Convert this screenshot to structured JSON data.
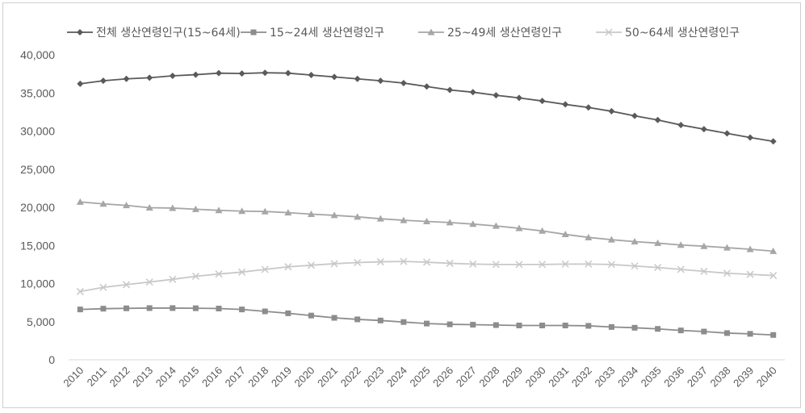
{
  "chart_data": {
    "type": "line",
    "title": "",
    "xlabel": "",
    "ylabel": "",
    "ylim": [
      0,
      40000
    ],
    "yticks": [
      "0",
      "5,000",
      "10,000",
      "15,000",
      "20,000",
      "25,000",
      "30,000",
      "35,000",
      "40,000"
    ],
    "grid": false,
    "legend_position": "top",
    "categories": [
      "2010",
      "2011",
      "2012",
      "2013",
      "2014",
      "2015",
      "2016",
      "2017",
      "2018",
      "2019",
      "2020",
      "2021",
      "2022",
      "2023",
      "2024",
      "2025",
      "2026",
      "2027",
      "2028",
      "2029",
      "2030",
      "2031",
      "2032",
      "2033",
      "2034",
      "2035",
      "2036",
      "2037",
      "2038",
      "2039",
      "2040"
    ],
    "series": [
      {
        "name": "전체 생산연령인구(15~64세)",
        "color": "#5a5a5a",
        "marker": "diamond",
        "values": [
          36200,
          36600,
          36850,
          37000,
          37250,
          37400,
          37600,
          37550,
          37650,
          37600,
          37350,
          37100,
          36850,
          36600,
          36300,
          35850,
          35400,
          35100,
          34700,
          34350,
          33950,
          33500,
          33100,
          32600,
          32000,
          31450,
          30800,
          30250,
          29700,
          29150,
          28650
        ]
      },
      {
        "name": "15~24세 생산연령인구",
        "color": "#8c8c8c",
        "marker": "square",
        "values": [
          6600,
          6700,
          6750,
          6780,
          6780,
          6760,
          6720,
          6600,
          6350,
          6100,
          5800,
          5500,
          5300,
          5150,
          4950,
          4750,
          4650,
          4600,
          4550,
          4500,
          4500,
          4500,
          4450,
          4300,
          4200,
          4050,
          3850,
          3700,
          3500,
          3400,
          3250
        ]
      },
      {
        "name": "25~49세 생산연령인구",
        "color": "#a6a6a6",
        "marker": "triangle",
        "values": [
          20700,
          20450,
          20250,
          19950,
          19900,
          19750,
          19600,
          19500,
          19450,
          19300,
          19100,
          18950,
          18750,
          18500,
          18300,
          18150,
          18000,
          17800,
          17550,
          17250,
          16900,
          16450,
          16050,
          15750,
          15500,
          15300,
          15050,
          14900,
          14700,
          14500,
          14250
        ]
      },
      {
        "name": "50~64세 생산연령인구",
        "color": "#c8c8c8",
        "marker": "cross",
        "values": [
          8950,
          9500,
          9850,
          10200,
          10550,
          10950,
          11250,
          11500,
          11850,
          12200,
          12400,
          12600,
          12750,
          12850,
          12900,
          12800,
          12650,
          12550,
          12500,
          12500,
          12500,
          12550,
          12550,
          12500,
          12300,
          12100,
          11850,
          11600,
          11350,
          11200,
          11050
        ]
      }
    ]
  }
}
